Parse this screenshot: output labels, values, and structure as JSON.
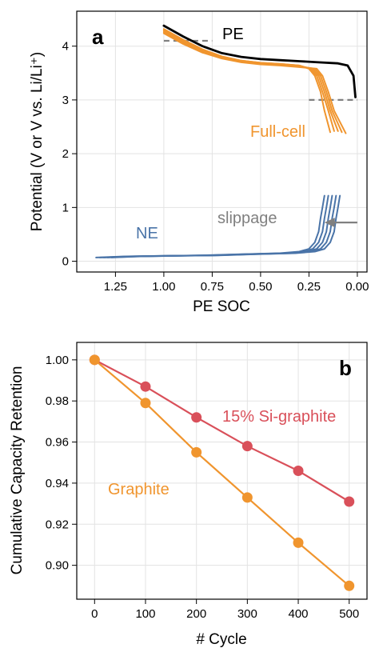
{
  "chart_data": [
    {
      "panel_label": "a",
      "type": "line",
      "xlabel": "PE SOC",
      "ylabel": "Potential (V or V vs. Li/Li⁺)",
      "x_reversed": true,
      "xlim": [
        1.45,
        -0.05
      ],
      "ylim": [
        -0.2,
        4.65
      ],
      "xticks": [
        1.25,
        1.0,
        0.75,
        0.5,
        0.25,
        0.0
      ],
      "xtick_labels": [
        "1.25",
        "1.00",
        "0.75",
        "0.50",
        "0.25",
        "0.00"
      ],
      "yticks": [
        0,
        1,
        2,
        3,
        4
      ],
      "ytick_labels": [
        "0",
        "1",
        "2",
        "3",
        "4"
      ],
      "grid": true,
      "colors": {
        "pe": "#000000",
        "full_cell": "#F0952E",
        "ne": "#4A74A8",
        "cutoff": "#808080",
        "slippage": "#808080"
      },
      "annotations": {
        "pe": "PE",
        "full_cell": "Full-cell",
        "ne": "NE",
        "slippage": "slippage"
      },
      "series": [
        {
          "id": "pe",
          "x": [
            1.0,
            0.9,
            0.8,
            0.7,
            0.6,
            0.5,
            0.4,
            0.3,
            0.2,
            0.1,
            0.05,
            0.02,
            0.01
          ],
          "y": [
            4.38,
            4.18,
            4.0,
            3.87,
            3.8,
            3.76,
            3.74,
            3.72,
            3.7,
            3.68,
            3.64,
            3.45,
            3.05
          ]
        },
        {
          "id": "full_cell_1",
          "x": [
            1.0,
            0.9,
            0.8,
            0.7,
            0.6,
            0.5,
            0.4,
            0.3,
            0.25,
            0.22,
            0.19,
            0.17,
            0.14
          ],
          "y": [
            4.32,
            4.12,
            3.94,
            3.81,
            3.73,
            3.69,
            3.67,
            3.64,
            3.58,
            3.45,
            3.15,
            2.8,
            2.4
          ]
        },
        {
          "id": "full_cell_2",
          "x": [
            1.0,
            0.9,
            0.8,
            0.7,
            0.6,
            0.5,
            0.4,
            0.3,
            0.24,
            0.21,
            0.18,
            0.15,
            0.12
          ],
          "y": [
            4.3,
            4.1,
            3.93,
            3.8,
            3.73,
            3.69,
            3.67,
            3.64,
            3.58,
            3.45,
            3.15,
            2.8,
            2.42
          ]
        },
        {
          "id": "full_cell_3",
          "x": [
            1.0,
            0.9,
            0.8,
            0.7,
            0.6,
            0.5,
            0.4,
            0.3,
            0.23,
            0.2,
            0.17,
            0.14,
            0.1
          ],
          "y": [
            4.28,
            4.08,
            3.91,
            3.79,
            3.72,
            3.68,
            3.66,
            3.63,
            3.58,
            3.45,
            3.15,
            2.8,
            2.42
          ]
        },
        {
          "id": "full_cell_4",
          "x": [
            1.0,
            0.9,
            0.8,
            0.7,
            0.6,
            0.5,
            0.4,
            0.3,
            0.22,
            0.19,
            0.16,
            0.13,
            0.08
          ],
          "y": [
            4.26,
            4.06,
            3.9,
            3.78,
            3.71,
            3.67,
            3.65,
            3.62,
            3.58,
            3.45,
            3.15,
            2.8,
            2.4
          ]
        },
        {
          "id": "full_cell_5",
          "x": [
            1.0,
            0.9,
            0.8,
            0.7,
            0.6,
            0.5,
            0.4,
            0.3,
            0.21,
            0.18,
            0.15,
            0.12,
            0.06
          ],
          "y": [
            4.24,
            4.04,
            3.88,
            3.77,
            3.7,
            3.66,
            3.64,
            3.61,
            3.58,
            3.45,
            3.15,
            2.8,
            2.38
          ]
        },
        {
          "id": "ne_1",
          "x": [
            1.35,
            1.2,
            1.0,
            0.8,
            0.6,
            0.4,
            0.3,
            0.25,
            0.22,
            0.2,
            0.19,
            0.18,
            0.17
          ],
          "y": [
            0.07,
            0.09,
            0.1,
            0.11,
            0.13,
            0.15,
            0.18,
            0.23,
            0.35,
            0.55,
            0.8,
            1.0,
            1.22
          ]
        },
        {
          "id": "ne_2",
          "x": [
            1.33,
            1.18,
            0.98,
            0.78,
            0.58,
            0.38,
            0.28,
            0.23,
            0.2,
            0.18,
            0.17,
            0.16,
            0.15
          ],
          "y": [
            0.07,
            0.09,
            0.1,
            0.11,
            0.13,
            0.15,
            0.18,
            0.23,
            0.35,
            0.55,
            0.8,
            1.0,
            1.22
          ]
        },
        {
          "id": "ne_3",
          "x": [
            1.31,
            1.16,
            0.96,
            0.76,
            0.56,
            0.36,
            0.26,
            0.21,
            0.18,
            0.16,
            0.15,
            0.14,
            0.13
          ],
          "y": [
            0.07,
            0.09,
            0.1,
            0.11,
            0.13,
            0.15,
            0.18,
            0.23,
            0.35,
            0.55,
            0.8,
            1.0,
            1.22
          ]
        },
        {
          "id": "ne_4",
          "x": [
            1.29,
            1.14,
            0.94,
            0.74,
            0.54,
            0.34,
            0.24,
            0.19,
            0.16,
            0.14,
            0.13,
            0.12,
            0.11
          ],
          "y": [
            0.07,
            0.09,
            0.1,
            0.11,
            0.13,
            0.15,
            0.18,
            0.23,
            0.35,
            0.55,
            0.8,
            1.0,
            1.22
          ]
        },
        {
          "id": "ne_5",
          "x": [
            1.27,
            1.12,
            0.92,
            0.72,
            0.52,
            0.32,
            0.22,
            0.17,
            0.14,
            0.12,
            0.11,
            0.1,
            0.09
          ],
          "y": [
            0.07,
            0.09,
            0.1,
            0.11,
            0.13,
            0.15,
            0.18,
            0.23,
            0.35,
            0.55,
            0.8,
            1.0,
            1.22
          ]
        }
      ],
      "cutoff_lines": [
        {
          "x": [
            1.0,
            0.75
          ],
          "y": 4.1
        },
        {
          "x": [
            0.25,
            0.0
          ],
          "y": 3.0
        }
      ],
      "slippage_arrow": {
        "from_x": 0.0,
        "to_x": 0.17,
        "y": 0.72
      }
    },
    {
      "panel_label": "b",
      "type": "line",
      "xlabel": "# Cycle",
      "ylabel": "Cumulative Capacity Retention",
      "xlim": [
        -35,
        535
      ],
      "ylim": [
        0.8835,
        1.0085
      ],
      "xticks": [
        0,
        100,
        200,
        300,
        400,
        500
      ],
      "xtick_labels": [
        "0",
        "100",
        "200",
        "300",
        "400",
        "500"
      ],
      "yticks": [
        0.9,
        0.92,
        0.94,
        0.96,
        0.98,
        1.0
      ],
      "ytick_labels": [
        "0.90",
        "0.92",
        "0.94",
        "0.96",
        "0.98",
        "1.00"
      ],
      "grid": true,
      "series": [
        {
          "name": "15% Si-graphite",
          "color": "#D9505A",
          "x": [
            0,
            100,
            200,
            300,
            400,
            500
          ],
          "values": [
            1.0,
            0.987,
            0.972,
            0.958,
            0.946,
            0.931
          ]
        },
        {
          "name": "Graphite",
          "color": "#F0952E",
          "x": [
            0,
            100,
            200,
            300,
            400,
            500
          ],
          "values": [
            1.0,
            0.979,
            0.955,
            0.933,
            0.911,
            0.89
          ]
        }
      ]
    }
  ]
}
